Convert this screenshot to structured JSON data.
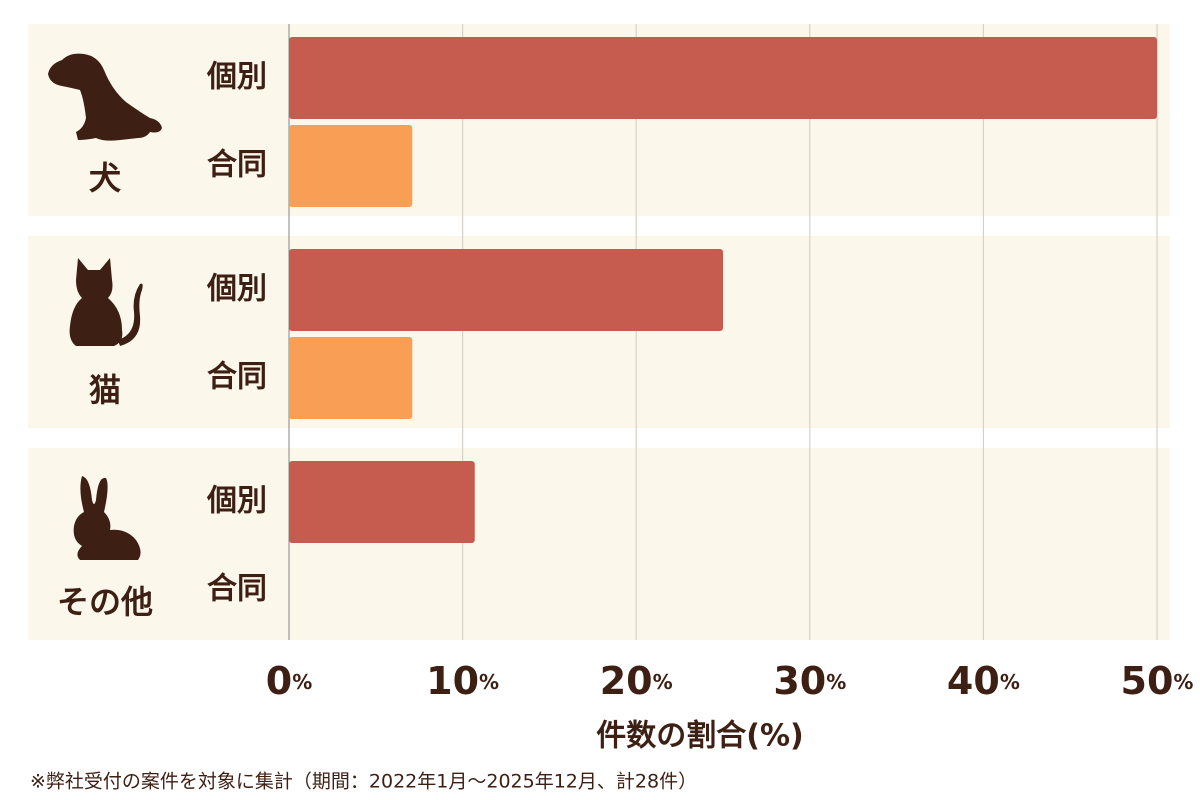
{
  "chart_data": {
    "type": "bar",
    "orientation": "horizontal",
    "categories": [
      "犬",
      "猫",
      "その他"
    ],
    "series": [
      {
        "name": "個別",
        "color": "#c65b4f",
        "values": [
          50,
          25,
          10.7
        ]
      },
      {
        "name": "合同",
        "color": "#f99f55",
        "values": [
          7.1,
          7.1,
          0
        ]
      }
    ],
    "xlim": [
      0,
      50
    ],
    "xticks": [
      {
        "value": 0,
        "label": "0%"
      },
      {
        "value": 10,
        "label": "10%"
      },
      {
        "value": 20,
        "label": "20%"
      },
      {
        "value": 30,
        "label": "30%"
      },
      {
        "value": 40,
        "label": "40%"
      },
      {
        "value": 50,
        "label": "50%"
      }
    ],
    "grid": true,
    "x_label": "件数の割合(%)",
    "footnote": "※弊社受付の案件を対象に集計（期間：2022年1月〜2025年12月、計28件）"
  }
}
